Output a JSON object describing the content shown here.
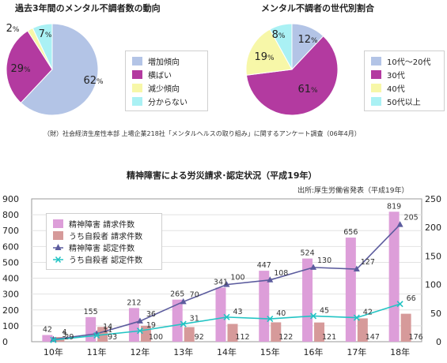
{
  "pie1": {
    "title": "過去3年間のメンタル不調者数の動向",
    "slices": [
      {
        "label": "増加傾向",
        "value": 62,
        "color": "#b3c4e6",
        "pct_label": "62%"
      },
      {
        "label": "横ばい",
        "value": 29,
        "color": "#b33aa0",
        "pct_label": "29%"
      },
      {
        "label": "減少傾向",
        "value": 2,
        "color": "#f7f7a8",
        "pct_label": "2%"
      },
      {
        "label": "分からない",
        "value": 7,
        "color": "#aaf1f4",
        "pct_label": "7%"
      }
    ]
  },
  "pie2": {
    "title": "メンタル不調者の世代別割合",
    "slices": [
      {
        "label": "10代～20代",
        "value": 12,
        "color": "#b3c4e6",
        "pct_label": "12%"
      },
      {
        "label": "30代",
        "value": 61,
        "color": "#b33aa0",
        "pct_label": "61%"
      },
      {
        "label": "40代",
        "value": 19,
        "color": "#f7f7a8",
        "pct_label": "19%"
      },
      {
        "label": "50代以上",
        "value": 8,
        "color": "#aaf1f4",
        "pct_label": "8%"
      }
    ]
  },
  "source_note": "（財）社会経済生産性本部 上場企業218社「メンタルヘルスの取り組み」に関するアンケート調査（06年4月）",
  "chart_data": {
    "type": "bar",
    "title": "精神障害による労災請求･認定状況（平成19年）",
    "source": "出所:厚生労働省発表（平成19年）",
    "categories": [
      "10年",
      "11年",
      "12年",
      "13年",
      "14年",
      "15年",
      "16年",
      "17年",
      "18年"
    ],
    "y_left": {
      "min": 0,
      "max": 900,
      "ticks": [
        0,
        100,
        200,
        300,
        400,
        500,
        600,
        700,
        800,
        900
      ]
    },
    "y_right": {
      "min": 0,
      "max": 250,
      "ticks": [
        0,
        50,
        100,
        150,
        200,
        250
      ]
    },
    "series": [
      {
        "name": "精神障害 請求件数",
        "kind": "bar",
        "axis": "left",
        "color": "#dd9ed9",
        "values": [
          42,
          155,
          212,
          265,
          341,
          447,
          524,
          656,
          819
        ]
      },
      {
        "name": "うち自殺者 請求件数",
        "kind": "bar",
        "axis": "left",
        "color": "#d69a9a",
        "values": [
          29,
          93,
          100,
          92,
          112,
          122,
          121,
          147,
          176
        ]
      },
      {
        "name": "精神障害 認定件数",
        "kind": "line",
        "axis": "right",
        "color": "#5c5c9e",
        "marker": "triangle",
        "values": [
          4,
          14,
          36,
          70,
          100,
          108,
          130,
          127,
          205
        ]
      },
      {
        "name": "うち自殺者 認定件数",
        "kind": "line",
        "axis": "right",
        "color": "#22c4c4",
        "marker": "x",
        "values": [
          3,
          11,
          19,
          31,
          43,
          40,
          45,
          42,
          66
        ]
      }
    ]
  }
}
